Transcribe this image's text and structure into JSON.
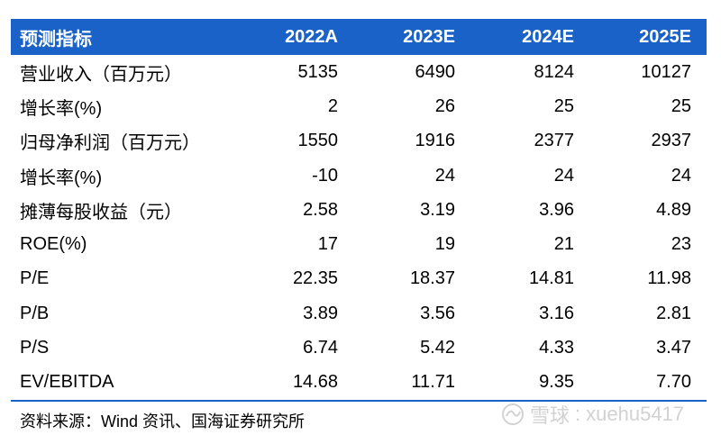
{
  "header": {
    "label": "预测指标",
    "years": [
      "2022A",
      "2023E",
      "2024E",
      "2025E"
    ]
  },
  "rows": [
    {
      "label": "营业收入（百万元）",
      "values": [
        "5135",
        "6490",
        "8124",
        "10127"
      ]
    },
    {
      "label": "增长率(%)",
      "values": [
        "2",
        "26",
        "25",
        "25"
      ]
    },
    {
      "label": "归母净利润（百万元）",
      "values": [
        "1550",
        "1916",
        "2377",
        "2937"
      ]
    },
    {
      "label": "增长率(%)",
      "values": [
        "-10",
        "24",
        "24",
        "24"
      ]
    },
    {
      "label": "摊薄每股收益（元）",
      "values": [
        "2.58",
        "3.19",
        "3.96",
        "4.89"
      ]
    },
    {
      "label": "ROE(%)",
      "values": [
        "17",
        "19",
        "21",
        "23"
      ]
    },
    {
      "label": "P/E",
      "values": [
        "22.35",
        "18.37",
        "14.81",
        "11.98"
      ]
    },
    {
      "label": "P/B",
      "values": [
        "3.89",
        "3.56",
        "3.16",
        "2.81"
      ]
    },
    {
      "label": "P/S",
      "values": [
        "6.74",
        "5.42",
        "4.33",
        "3.47"
      ]
    },
    {
      "label": "EV/EBITDA",
      "values": [
        "14.68",
        "11.71",
        "9.35",
        "7.70"
      ]
    }
  ],
  "source": "资料来源：Wind 资讯、国海证券研究所",
  "watermark": {
    "brand": "雪球",
    "user": "xuehu5417",
    "icon": "snowball-logo-icon",
    "color": "#d2d2d2"
  },
  "colors": {
    "header_bg": "#1a62c8",
    "header_text": "#ffffff"
  }
}
